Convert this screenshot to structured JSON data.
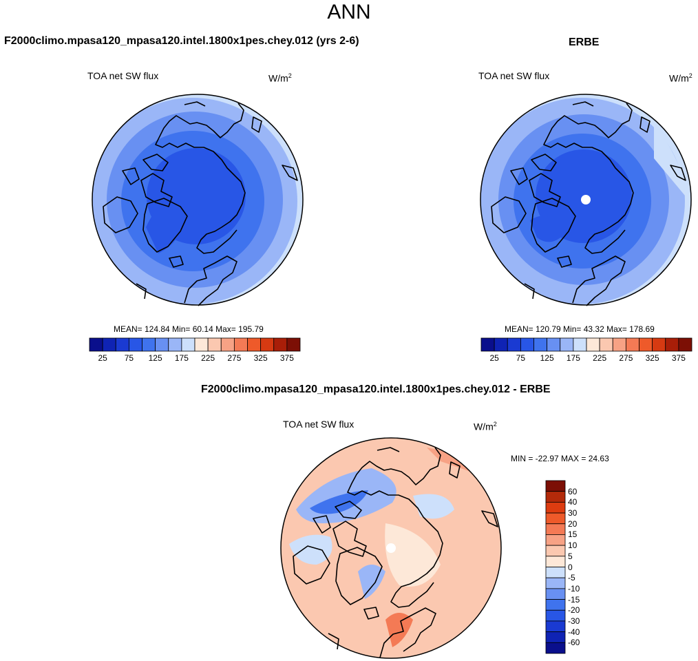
{
  "main_title": "ANN",
  "panels": {
    "model": {
      "title": "F2000climo.mpasa120_mpasa120.intel.1800x1pes.chey.012 (yrs 2-6)",
      "var_label": "TOA net SW flux",
      "units_base": "W/m",
      "units_exp": "2",
      "stats": "MEAN= 124.84  Min=  60.14  Max= 195.79"
    },
    "obs": {
      "title": "ERBE",
      "var_label": "TOA net SW flux",
      "units_base": "W/m",
      "units_exp": "2",
      "stats": "MEAN= 120.79  Min=  43.32  Max= 178.69"
    },
    "diff": {
      "title": "F2000climo.mpasa120_mpasa120.intel.1800x1pes.chey.012 - ERBE",
      "var_label": "TOA net SW flux",
      "units_base": "W/m",
      "units_exp": "2",
      "stats": "MIN = -22.97 MAX =  24.63"
    }
  },
  "colorbars": {
    "abs": {
      "colors": [
        "#0a0f8c",
        "#0f23b4",
        "#1a3ad2",
        "#2856e6",
        "#3f73ee",
        "#6890f2",
        "#9ab6f7",
        "#cde0fb",
        "#fde8d8",
        "#fbc8b0",
        "#f7a285",
        "#f47a55",
        "#ee5a2a",
        "#d63a12",
        "#a91e08",
        "#7c0f05"
      ],
      "labels": [
        "25",
        "75",
        "125",
        "175",
        "225",
        "275",
        "325",
        "375"
      ]
    },
    "diff": {
      "colors": [
        "#7c0f05",
        "#b32a0a",
        "#dd3c10",
        "#ee5a2a",
        "#f47a55",
        "#f7a285",
        "#fbc8b0",
        "#fde8d8",
        "#cde0fb",
        "#9ab6f7",
        "#6890f2",
        "#3f73ee",
        "#2856e6",
        "#1a3ad2",
        "#0f23b4",
        "#0a0f8c"
      ],
      "labels": [
        "60",
        "40",
        "30",
        "20",
        "15",
        "10",
        "5",
        "0",
        "-5",
        "-10",
        "-15",
        "-20",
        "-30",
        "-40",
        "-60"
      ]
    }
  }
}
